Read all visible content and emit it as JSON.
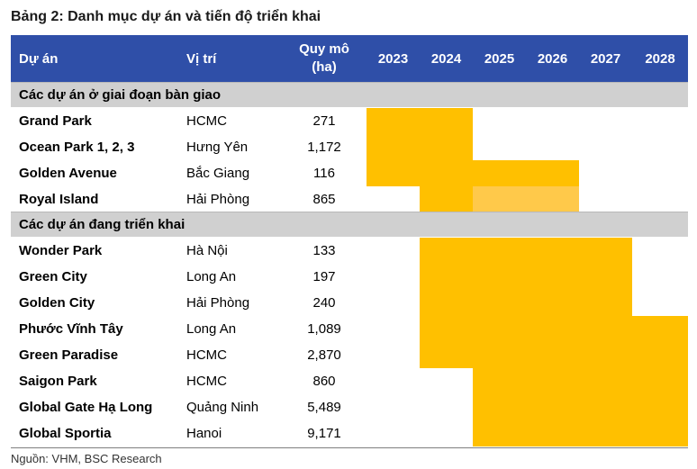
{
  "title": "Bảng 2: Danh mục dự án và tiến độ triển khai",
  "header": {
    "project": "Dự án",
    "location": "Vị trí",
    "scale_line1": "Quy mô",
    "scale_line2": "(ha)",
    "years": [
      "2023",
      "2024",
      "2025",
      "2026",
      "2027",
      "2028"
    ]
  },
  "colors": {
    "header_bg": "#2f4fa8",
    "bar": "#ffc000",
    "bar_light": "#ffc94a",
    "section_bg": "#d0d0d0"
  },
  "sections": [
    {
      "label": "Các dự án ở giai đoạn bàn giao",
      "rows": [
        {
          "name": "Grand Park",
          "location": "HCMC",
          "scale": "271",
          "segments": [
            {
              "from": "2023",
              "to": "2024",
              "tone": "dark"
            }
          ]
        },
        {
          "name": "Ocean Park 1, 2, 3",
          "location": "Hưng Yên",
          "scale": "1,172",
          "segments": [
            {
              "from": "2023",
              "to": "2024",
              "tone": "dark"
            }
          ]
        },
        {
          "name": "Golden Avenue",
          "location": "Bắc Giang",
          "scale": "116",
          "segments": [
            {
              "from": "2023",
              "to": "2026",
              "tone": "dark"
            }
          ]
        },
        {
          "name": "Royal Island",
          "location": "Hải Phòng",
          "scale": "865",
          "segments": [
            {
              "from": "2024",
              "to": "2024",
              "tone": "dark"
            },
            {
              "from": "2025",
              "to": "2026",
              "tone": "light"
            }
          ]
        }
      ]
    },
    {
      "label": "Các dự án đang triển khai",
      "rows": [
        {
          "name": "Wonder Park",
          "location": "Hà Nội",
          "scale": "133",
          "segments": [
            {
              "from": "2024",
              "to": "2027",
              "tone": "dark"
            }
          ]
        },
        {
          "name": "Green City",
          "location": "Long An",
          "scale": "197",
          "segments": [
            {
              "from": "2024",
              "to": "2027",
              "tone": "dark"
            }
          ]
        },
        {
          "name": "Golden City",
          "location": "Hải Phòng",
          "scale": "240",
          "segments": [
            {
              "from": "2024",
              "to": "2027",
              "tone": "dark"
            }
          ]
        },
        {
          "name": "Phước Vĩnh Tây",
          "location": "Long An",
          "scale": "1,089",
          "segments": [
            {
              "from": "2024",
              "to": "2028",
              "tone": "dark"
            }
          ]
        },
        {
          "name": "Green Paradise",
          "location": "HCMC",
          "scale": "2,870",
          "segments": [
            {
              "from": "2024",
              "to": "2028",
              "tone": "dark"
            }
          ]
        },
        {
          "name": "Saigon Park",
          "location": "HCMC",
          "scale": "860",
          "segments": [
            {
              "from": "2025",
              "to": "2028",
              "tone": "dark"
            }
          ]
        },
        {
          "name": "Global Gate Hạ Long",
          "location": "Quảng Ninh",
          "scale": "5,489",
          "segments": [
            {
              "from": "2025",
              "to": "2028",
              "tone": "dark"
            }
          ]
        },
        {
          "name": "Global Sportia",
          "location": "Hanoi",
          "scale": "9,171",
          "segments": [
            {
              "from": "2025",
              "to": "2028",
              "tone": "dark"
            }
          ]
        }
      ]
    }
  ],
  "source": "Nguồn: VHM, BSC Research"
}
